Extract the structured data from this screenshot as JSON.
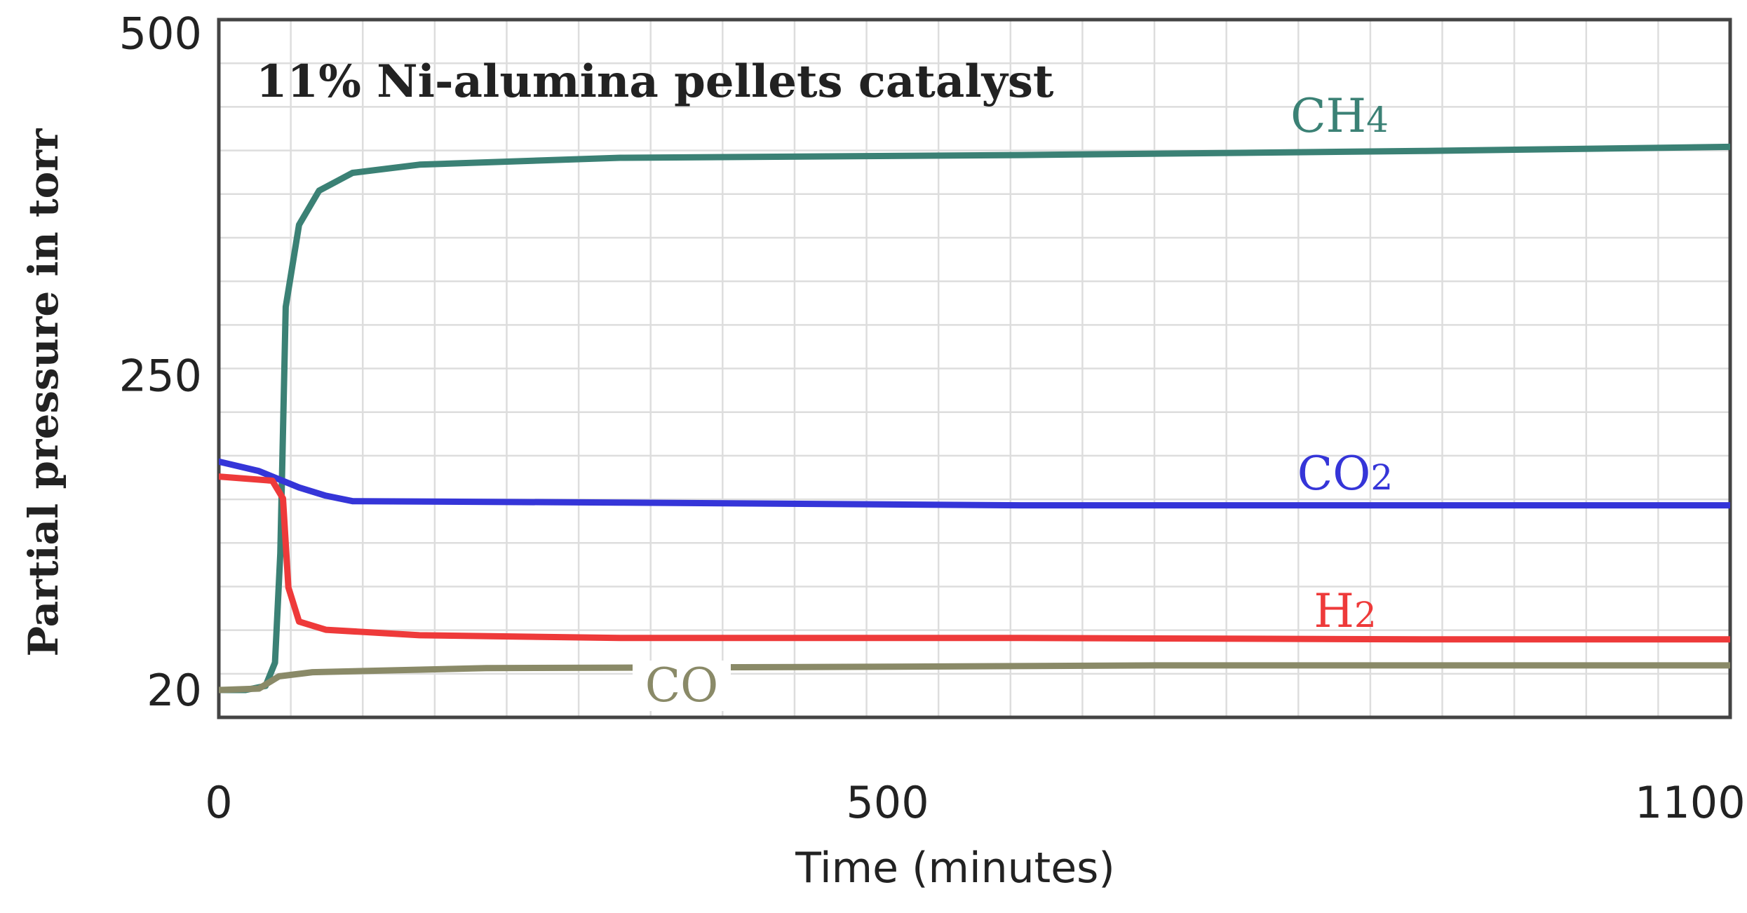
{
  "chart_data": {
    "type": "line",
    "title": "11% Ni-alumina pellets catalyst",
    "xlabel": "Time (minutes)",
    "ylabel": "Partial pressure in torr",
    "xlim": [
      0,
      1130
    ],
    "ylim": [
      0,
      510
    ],
    "x_ticks": [
      0,
      500,
      1100
    ],
    "x_tick_labels": [
      "0",
      "500",
      "1100"
    ],
    "y_ticks": [
      20,
      250,
      500
    ],
    "y_tick_labels": [
      "20",
      "250",
      "500"
    ],
    "grid": true,
    "series": [
      {
        "name": "CH4",
        "label_main": "CH",
        "label_sub": "4",
        "color": "#3b8175",
        "points": [
          [
            0,
            20
          ],
          [
            20,
            20
          ],
          [
            35,
            23
          ],
          [
            42,
            40
          ],
          [
            46,
            120
          ],
          [
            50,
            300
          ],
          [
            60,
            360
          ],
          [
            75,
            385
          ],
          [
            100,
            398
          ],
          [
            150,
            404
          ],
          [
            300,
            409
          ],
          [
            600,
            411
          ],
          [
            900,
            414
          ],
          [
            1130,
            417
          ]
        ]
      },
      {
        "name": "CO2",
        "label_main": "CO",
        "label_sub": "2",
        "color": "#3535d8",
        "points": [
          [
            0,
            187
          ],
          [
            30,
            180
          ],
          [
            60,
            168
          ],
          [
            80,
            162
          ],
          [
            100,
            158
          ],
          [
            300,
            157
          ],
          [
            600,
            155
          ],
          [
            900,
            155
          ],
          [
            1130,
            155
          ]
        ]
      },
      {
        "name": "H2",
        "label_main": "H",
        "label_sub": "2",
        "color": "#ee3a3a",
        "points": [
          [
            0,
            176
          ],
          [
            40,
            173
          ],
          [
            48,
            160
          ],
          [
            52,
            95
          ],
          [
            60,
            70
          ],
          [
            80,
            64
          ],
          [
            150,
            60
          ],
          [
            300,
            58
          ],
          [
            600,
            58
          ],
          [
            900,
            57
          ],
          [
            1130,
            57
          ]
        ]
      },
      {
        "name": "CO",
        "label_main": "CO",
        "label_sub": "",
        "color": "#8a8a68",
        "points": [
          [
            0,
            20
          ],
          [
            30,
            21
          ],
          [
            45,
            30
          ],
          [
            70,
            33
          ],
          [
            200,
            36
          ],
          [
            500,
            37
          ],
          [
            700,
            38
          ],
          [
            900,
            38
          ],
          [
            1130,
            38
          ]
        ]
      }
    ]
  }
}
